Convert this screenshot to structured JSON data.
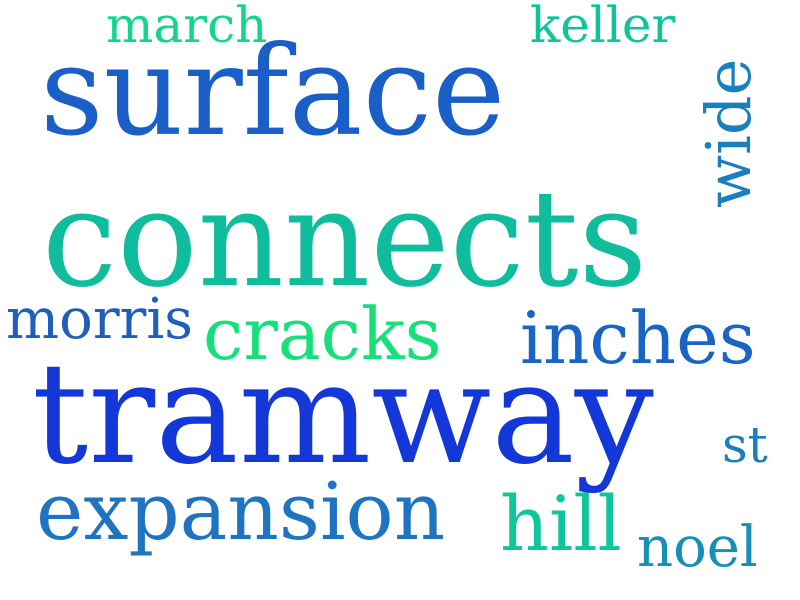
{
  "words": {
    "surface": {
      "text": "surface",
      "color": "#1a5fc8"
    },
    "connects": {
      "text": "connects",
      "color": "#0fbc9c"
    },
    "tramway": {
      "text": "tramway",
      "color": "#1438d8"
    },
    "expansion": {
      "text": "expansion",
      "color": "#1f74c2"
    },
    "morris": {
      "text": "morris",
      "color": "#1f5fb8"
    },
    "cracks": {
      "text": "cracks",
      "color": "#17e07a"
    },
    "inches": {
      "text": "inches",
      "color": "#1a64c6"
    },
    "march": {
      "text": "march",
      "color": "#14d68a"
    },
    "keller": {
      "text": "keller",
      "color": "#10c49a"
    },
    "wide": {
      "text": "wide",
      "color": "#1a7fbd"
    },
    "st": {
      "text": "st",
      "color": "#1a7fbd"
    },
    "hill": {
      "text": "hill",
      "color": "#10c59c"
    },
    "noel": {
      "text": "noel",
      "color": "#1690b6"
    }
  }
}
